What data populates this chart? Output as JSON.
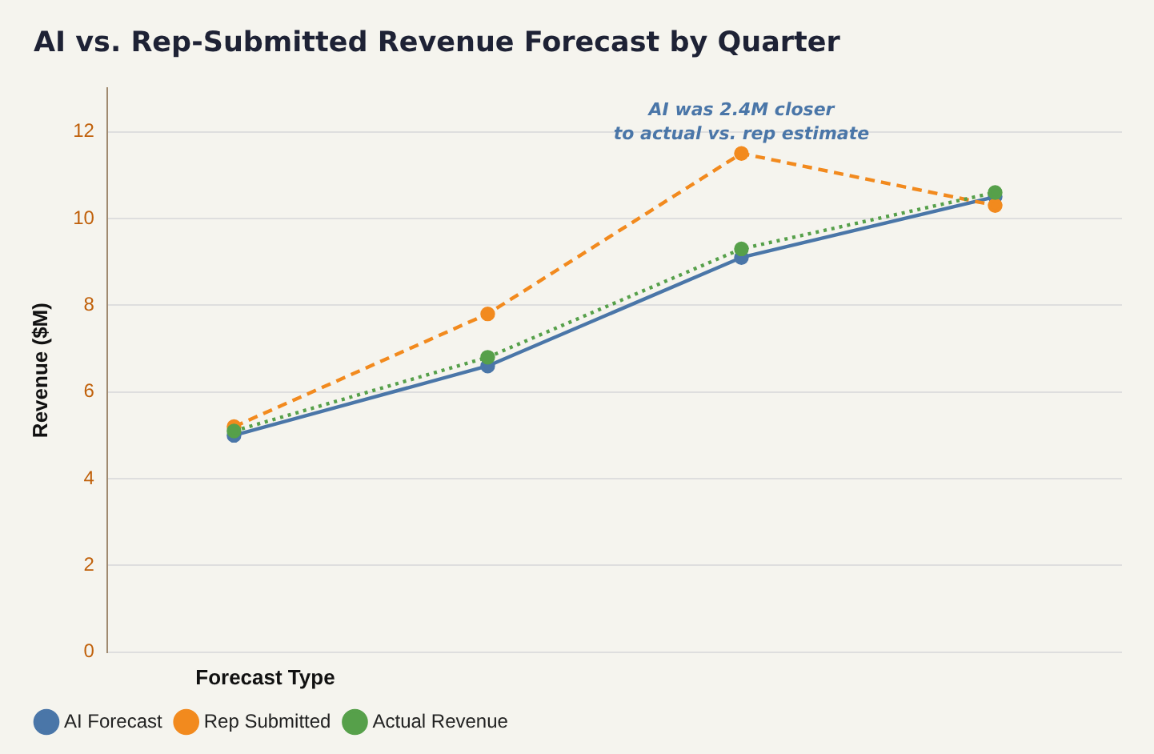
{
  "chart_data": {
    "type": "line",
    "title": "AI vs. Rep-Submitted Revenue Forecast by Quarter",
    "ylabel": "Revenue ($M)",
    "legend_title": "Forecast Type",
    "categories": [
      null,
      null,
      null,
      null
    ],
    "series": [
      {
        "name": "AI Forecast",
        "color": "#4a76a8",
        "values": [
          5.0,
          6.6,
          9.1,
          10.5
        ],
        "line_style": "solid"
      },
      {
        "name": "Rep Submitted",
        "color": "#f28a1e",
        "values": [
          5.2,
          7.8,
          11.5,
          10.3
        ],
        "line_style": "dashed"
      },
      {
        "name": "Actual Revenue",
        "color": "#56a04a",
        "values": [
          5.1,
          6.8,
          9.3,
          10.6
        ],
        "line_style": "dotted"
      }
    ],
    "ylim": [
      0,
      13
    ],
    "yticks": [
      0,
      2,
      4,
      6,
      8,
      10,
      12
    ],
    "grid": "y",
    "legend": "bottom left",
    "marker": "circle",
    "tick_labels": "y",
    "annotations": [
      "AI was 2.4M closer\nto actual vs. rep estimate"
    ]
  }
}
